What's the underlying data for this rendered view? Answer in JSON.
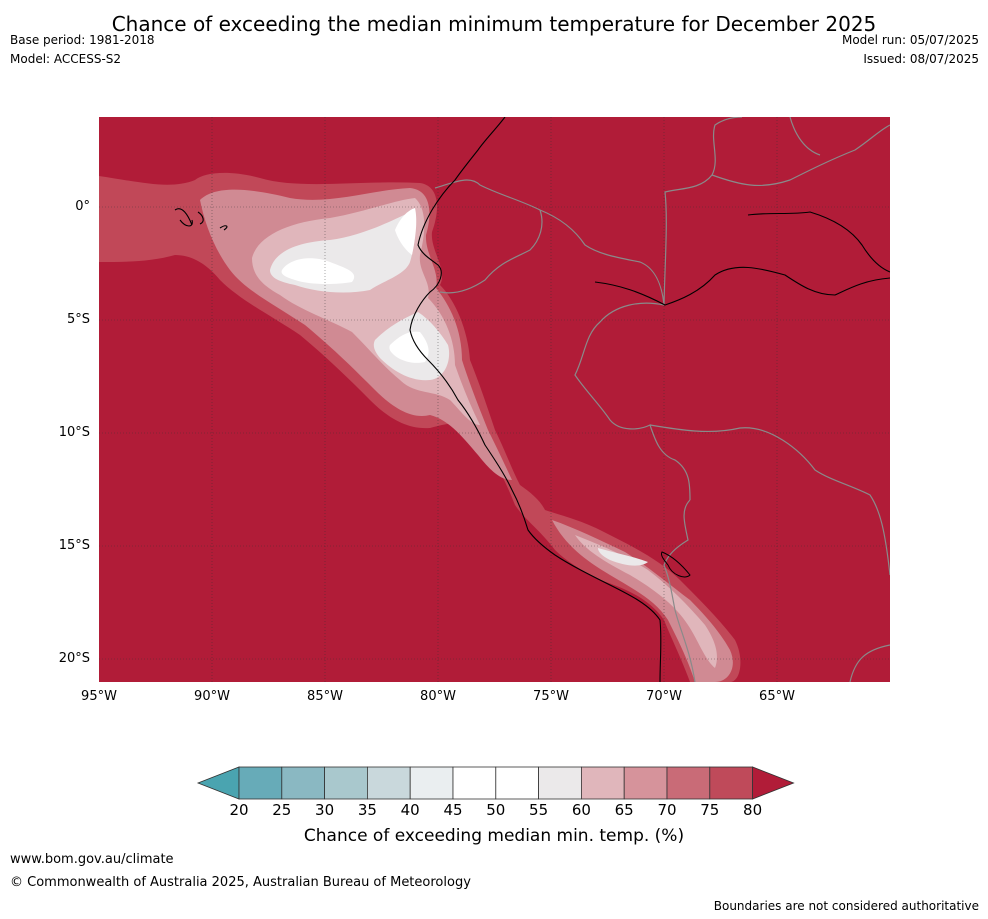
{
  "title": "Chance of exceeding the median minimum temperature for December 2025",
  "meta_left": {
    "base_period": "Base period: 1981-2018",
    "model": "Model: ACCESS-S2"
  },
  "meta_right": {
    "model_run": "Model run: 05/07/2025",
    "issued": "Issued: 08/07/2025"
  },
  "map": {
    "lat_labels": [
      "0°",
      "5°S",
      "10°S",
      "15°S",
      "20°S"
    ],
    "lon_labels": [
      "95°W",
      "90°W",
      "85°W",
      "80°W",
      "75°W",
      "70°W",
      "65°W"
    ],
    "colors": {
      "background_high": "#b11c38",
      "c75": "#c14858",
      "c70": "#d08a93",
      "c65": "#e0b6bb",
      "c55": "#ebe9ea",
      "c50": "#ffffff",
      "coast": "#000000",
      "border": "#8a8a8a"
    }
  },
  "colorbar": {
    "ticks": [
      "20",
      "25",
      "30",
      "35",
      "40",
      "45",
      "50",
      "55",
      "60",
      "65",
      "70",
      "75",
      "80"
    ],
    "colors": [
      "#4aa4b0",
      "#67abb8",
      "#8ab8c2",
      "#a9c8cd",
      "#c9d8dc",
      "#eaeef0",
      "#ffffff",
      "#ffffff",
      "#ebe9ea",
      "#e0b6bb",
      "#d6939b",
      "#c96b77",
      "#bf4a5a",
      "#b11c38"
    ],
    "label": "Chance of exceeding median min. temp. (%)"
  },
  "footer": {
    "url": "www.bom.gov.au/climate",
    "copyright": "© Commonwealth of Australia 2025, Australian Bureau of Meteorology",
    "note": "Boundaries are not considered authoritative"
  }
}
